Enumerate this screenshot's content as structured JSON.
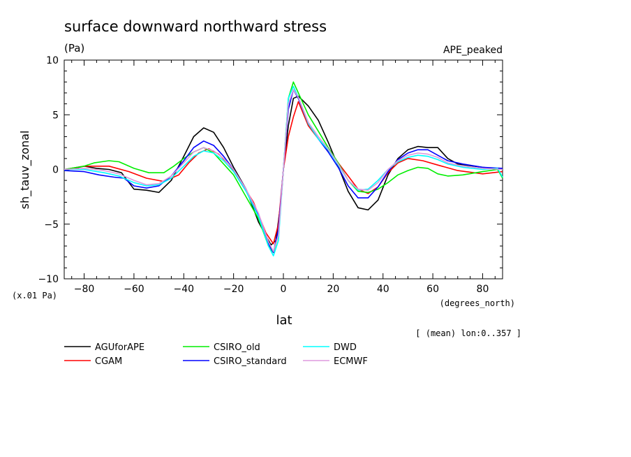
{
  "chart_data": {
    "type": "line",
    "title": "surface downward northward stress",
    "units": "(Pa)",
    "experiment": "APE_peaked",
    "ylabel": "sh_tauv_zonal",
    "yscale_note": "(x.01 Pa)",
    "xlabel": "lat",
    "xunits": "(degrees_north)",
    "averaging_note": "[ (mean) lon:0..357 ]",
    "xlim": [
      -88,
      88
    ],
    "ylim": [
      -10,
      10
    ],
    "x_ticks": [
      -80,
      -60,
      -40,
      -20,
      0,
      20,
      40,
      60,
      80
    ],
    "x_tick_labels": [
      "−80",
      "−60",
      "−40",
      "−20",
      "0",
      "20",
      "40",
      "60",
      "80"
    ],
    "y_ticks": [
      -10,
      -5,
      0,
      5,
      10
    ],
    "y_tick_labels": [
      "−10",
      "−5",
      "0",
      "5",
      "10"
    ],
    "legend_position": "below plot",
    "series": [
      {
        "name": "AGUforAPE",
        "color": "#000000",
        "points": [
          [
            -88,
            -0.1
          ],
          [
            -80,
            0.3
          ],
          [
            -75,
            0.1
          ],
          [
            -70,
            0
          ],
          [
            -65,
            -0.3
          ],
          [
            -60,
            -1.8
          ],
          [
            -55,
            -1.9
          ],
          [
            -50,
            -2.1
          ],
          [
            -45,
            -1
          ],
          [
            -40,
            1.2
          ],
          [
            -36,
            3
          ],
          [
            -32,
            3.8
          ],
          [
            -28,
            3.4
          ],
          [
            -24,
            2
          ],
          [
            -20,
            0.2
          ],
          [
            -15,
            -1.8
          ],
          [
            -10,
            -4.8
          ],
          [
            -5,
            -6.9
          ],
          [
            -3,
            -6.5
          ],
          [
            -1,
            -3
          ],
          [
            0,
            0
          ],
          [
            2,
            4
          ],
          [
            4,
            6.5
          ],
          [
            6,
            6.7
          ],
          [
            10,
            5.8
          ],
          [
            14,
            4.5
          ],
          [
            18,
            2.5
          ],
          [
            22,
            0.3
          ],
          [
            26,
            -2
          ],
          [
            30,
            -3.5
          ],
          [
            34,
            -3.7
          ],
          [
            38,
            -2.8
          ],
          [
            42,
            -0.5
          ],
          [
            46,
            1
          ],
          [
            50,
            1.8
          ],
          [
            54,
            2.1
          ],
          [
            58,
            2
          ],
          [
            62,
            2
          ],
          [
            66,
            1
          ],
          [
            70,
            0.5
          ],
          [
            80,
            0.2
          ],
          [
            88,
            0
          ]
        ]
      },
      {
        "name": "CGAM",
        "color": "#ff0000",
        "points": [
          [
            -88,
            0
          ],
          [
            -80,
            0.3
          ],
          [
            -70,
            0.3
          ],
          [
            -62,
            -0.2
          ],
          [
            -55,
            -0.8
          ],
          [
            -48,
            -1.1
          ],
          [
            -42,
            -0.5
          ],
          [
            -38,
            0.6
          ],
          [
            -34,
            1.5
          ],
          [
            -30,
            1.9
          ],
          [
            -26,
            1.4
          ],
          [
            -22,
            0.5
          ],
          [
            -18,
            -0.8
          ],
          [
            -12,
            -3
          ],
          [
            -7,
            -5.8
          ],
          [
            -4,
            -6.8
          ],
          [
            -2,
            -5
          ],
          [
            0,
            0
          ],
          [
            2,
            3
          ],
          [
            4,
            4.8
          ],
          [
            6,
            6.2
          ],
          [
            10,
            4
          ],
          [
            14,
            2.8
          ],
          [
            20,
            1.2
          ],
          [
            26,
            -0.6
          ],
          [
            30,
            -1.8
          ],
          [
            34,
            -2.2
          ],
          [
            38,
            -1.6
          ],
          [
            42,
            -0.3
          ],
          [
            46,
            0.6
          ],
          [
            50,
            1
          ],
          [
            56,
            0.8
          ],
          [
            62,
            0.4
          ],
          [
            70,
            -0.1
          ],
          [
            80,
            -0.4
          ],
          [
            88,
            -0.2
          ]
        ]
      },
      {
        "name": "CSIRO_old",
        "color": "#00ee00",
        "points": [
          [
            -88,
            0
          ],
          [
            -80,
            0.3
          ],
          [
            -76,
            0.6
          ],
          [
            -70,
            0.8
          ],
          [
            -66,
            0.7
          ],
          [
            -60,
            0.1
          ],
          [
            -54,
            -0.3
          ],
          [
            -48,
            -0.3
          ],
          [
            -44,
            0.3
          ],
          [
            -40,
            1
          ],
          [
            -36,
            1.6
          ],
          [
            -32,
            2
          ],
          [
            -28,
            1.5
          ],
          [
            -24,
            0.5
          ],
          [
            -20,
            -0.5
          ],
          [
            -15,
            -2.5
          ],
          [
            -10,
            -4.5
          ],
          [
            -6,
            -7
          ],
          [
            -4,
            -7.6
          ],
          [
            -2,
            -6
          ],
          [
            0,
            0
          ],
          [
            2,
            6.5
          ],
          [
            4,
            8
          ],
          [
            6,
            7
          ],
          [
            10,
            5
          ],
          [
            14,
            3.5
          ],
          [
            18,
            2
          ],
          [
            22,
            0.6
          ],
          [
            26,
            -1
          ],
          [
            30,
            -2
          ],
          [
            34,
            -2.1
          ],
          [
            38,
            -1.8
          ],
          [
            42,
            -1.2
          ],
          [
            46,
            -0.5
          ],
          [
            50,
            -0.1
          ],
          [
            54,
            0.2
          ],
          [
            58,
            0.1
          ],
          [
            62,
            -0.4
          ],
          [
            66,
            -0.6
          ],
          [
            72,
            -0.5
          ],
          [
            80,
            -0.2
          ],
          [
            86,
            0
          ],
          [
            88,
            -0.8
          ]
        ]
      },
      {
        "name": "CSIRO_standard",
        "color": "#0000ff",
        "points": [
          [
            -88,
            -0.1
          ],
          [
            -80,
            -0.2
          ],
          [
            -74,
            -0.5
          ],
          [
            -68,
            -0.7
          ],
          [
            -64,
            -0.8
          ],
          [
            -60,
            -1.5
          ],
          [
            -55,
            -1.7
          ],
          [
            -50,
            -1.5
          ],
          [
            -45,
            -0.6
          ],
          [
            -40,
            0.8
          ],
          [
            -36,
            2
          ],
          [
            -32,
            2.6
          ],
          [
            -28,
            2.2
          ],
          [
            -24,
            1.2
          ],
          [
            -20,
            0
          ],
          [
            -15,
            -1.8
          ],
          [
            -10,
            -4.2
          ],
          [
            -6,
            -6.8
          ],
          [
            -4,
            -7.6
          ],
          [
            -2,
            -5.5
          ],
          [
            0,
            0
          ],
          [
            2,
            5.5
          ],
          [
            4,
            7.3
          ],
          [
            6,
            6.5
          ],
          [
            10,
            4.2
          ],
          [
            14,
            2.8
          ],
          [
            18,
            1.6
          ],
          [
            22,
            0.2
          ],
          [
            26,
            -1.5
          ],
          [
            30,
            -2.6
          ],
          [
            34,
            -2.6
          ],
          [
            38,
            -1.6
          ],
          [
            42,
            -0.2
          ],
          [
            46,
            0.9
          ],
          [
            50,
            1.5
          ],
          [
            54,
            1.8
          ],
          [
            58,
            1.8
          ],
          [
            62,
            1.3
          ],
          [
            66,
            0.8
          ],
          [
            72,
            0.5
          ],
          [
            80,
            0.2
          ],
          [
            88,
            0.1
          ]
        ]
      },
      {
        "name": "DWD",
        "color": "#00ffff",
        "points": [
          [
            -88,
            0
          ],
          [
            -80,
            0
          ],
          [
            -72,
            -0.3
          ],
          [
            -66,
            -0.6
          ],
          [
            -60,
            -1.2
          ],
          [
            -55,
            -1.5
          ],
          [
            -50,
            -1.4
          ],
          [
            -45,
            -0.8
          ],
          [
            -40,
            0.3
          ],
          [
            -36,
            1.2
          ],
          [
            -32,
            1.7
          ],
          [
            -28,
            1.5
          ],
          [
            -24,
            0.8
          ],
          [
            -20,
            -0.2
          ],
          [
            -15,
            -2
          ],
          [
            -10,
            -4.3
          ],
          [
            -6,
            -7
          ],
          [
            -4,
            -7.9
          ],
          [
            -2,
            -6.5
          ],
          [
            0,
            0
          ],
          [
            2,
            6.5
          ],
          [
            4,
            7.6
          ],
          [
            6,
            6.6
          ],
          [
            10,
            4.2
          ],
          [
            14,
            2.8
          ],
          [
            18,
            1.8
          ],
          [
            22,
            0.4
          ],
          [
            26,
            -1
          ],
          [
            30,
            -1.9
          ],
          [
            34,
            -1.8
          ],
          [
            38,
            -1
          ],
          [
            42,
            0
          ],
          [
            46,
            0.7
          ],
          [
            50,
            1.1
          ],
          [
            54,
            1.3
          ],
          [
            58,
            1.2
          ],
          [
            62,
            0.9
          ],
          [
            66,
            0.5
          ],
          [
            72,
            0.2
          ],
          [
            80,
            0
          ],
          [
            86,
            0.1
          ],
          [
            88,
            -0.7
          ]
        ]
      },
      {
        "name": "ECMWF",
        "color": "#dd99dd",
        "points": [
          [
            -88,
            0
          ],
          [
            -80,
            0.1
          ],
          [
            -72,
            -0.1
          ],
          [
            -66,
            -0.4
          ],
          [
            -60,
            -1
          ],
          [
            -55,
            -1.4
          ],
          [
            -50,
            -1.3
          ],
          [
            -45,
            -0.6
          ],
          [
            -40,
            0.6
          ],
          [
            -36,
            1.6
          ],
          [
            -32,
            2
          ],
          [
            -28,
            1.7
          ],
          [
            -24,
            1
          ],
          [
            -20,
            0
          ],
          [
            -15,
            -1.8
          ],
          [
            -10,
            -4
          ],
          [
            -6,
            -6.6
          ],
          [
            -4,
            -7.5
          ],
          [
            -2,
            -6
          ],
          [
            0,
            0
          ],
          [
            2,
            6
          ],
          [
            4,
            7.3
          ],
          [
            6,
            6.6
          ],
          [
            10,
            4.3
          ],
          [
            14,
            3
          ],
          [
            18,
            1.9
          ],
          [
            22,
            0.5
          ],
          [
            26,
            -1
          ],
          [
            30,
            -1.8
          ],
          [
            34,
            -1.9
          ],
          [
            38,
            -1.2
          ],
          [
            42,
            0
          ],
          [
            46,
            0.8
          ],
          [
            50,
            1.3
          ],
          [
            54,
            1.5
          ],
          [
            58,
            1.4
          ],
          [
            62,
            1.1
          ],
          [
            66,
            0.6
          ],
          [
            72,
            0.3
          ],
          [
            80,
            0.1
          ],
          [
            88,
            0
          ]
        ]
      }
    ]
  }
}
